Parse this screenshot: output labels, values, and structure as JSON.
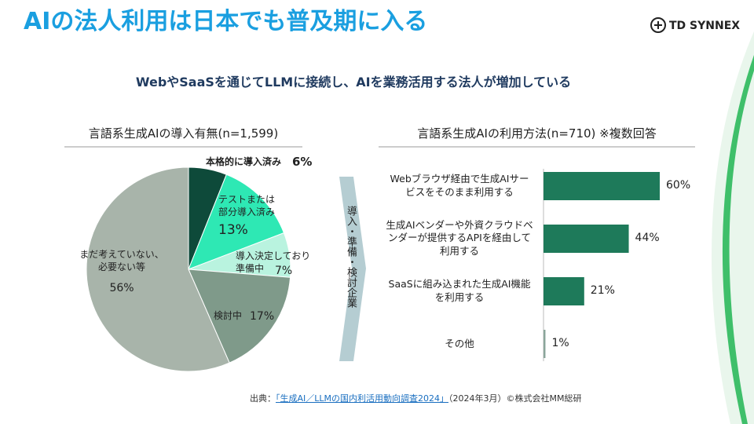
{
  "header": {
    "title": "AIの法人利用は日本でも普及期に入る",
    "logo": "TD SYNNEX",
    "subtitle": "WebやSaaSを通じてLLMに接続し、AIを業務活用する法人が増加している"
  },
  "chart_data": [
    {
      "type": "pie",
      "title": "言語系生成AIの導入有無(n=1,599)",
      "categories": [
        "本格的に導入済み",
        "テストまたは\n部分導入済み",
        "導入決定しており\n準備中",
        "検討中",
        "まだ考えていない、\n必要ない等"
      ],
      "values": [
        6,
        13,
        7,
        17,
        56
      ],
      "value_labels": [
        "6%",
        "13%",
        "7%",
        "17%",
        "56%"
      ],
      "colors": [
        "#0e4a3a",
        "#2ee8b4",
        "#b9f3df",
        "#7f9a8a",
        "#a8b4aa"
      ]
    },
    {
      "type": "hbar",
      "title": "言語系生成AIの利用方法(n=710) ※複数回答",
      "categories": [
        "Webブラウザ経由で生成AIサー\nビスをそのまま利用する",
        "生成AIベンダーや外資クラウドベ\nンダーが提供するAPIを経由して\n利用する",
        "SaaSに組み込まれた生成AI機能\nを利用する",
        "その他"
      ],
      "values": [
        60,
        44,
        21,
        1
      ],
      "value_labels": [
        "60%",
        "44%",
        "21%",
        "1%"
      ],
      "color": "#1e7a5a"
    }
  ],
  "arrow_label": "導入・準備・検討企業",
  "source": {
    "prefix": "出典：",
    "link": "「生成AI／LLMの国内利活用動向調査2024」",
    "suffix": "（2024年3月）©株式会社MM総研"
  }
}
